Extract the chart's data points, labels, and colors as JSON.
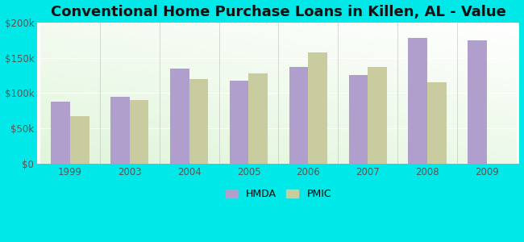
{
  "title": "Conventional Home Purchase Loans in Killen, AL - Value",
  "categories": [
    "1999",
    "2003",
    "2004",
    "2005",
    "2006",
    "2007",
    "2008",
    "2009"
  ],
  "hmda_values": [
    88000,
    95000,
    135000,
    118000,
    137000,
    126000,
    178000,
    175000
  ],
  "pmic_values": [
    67000,
    90000,
    120000,
    128000,
    157000,
    137000,
    115000,
    null
  ],
  "hmda_color": "#b09fcc",
  "pmic_color": "#c8cc9f",
  "outer_background": "#00e8e8",
  "ylim": [
    0,
    200000
  ],
  "yticks": [
    0,
    50000,
    100000,
    150000,
    200000
  ],
  "ytick_labels": [
    "$0",
    "$50k",
    "$100k",
    "$150k",
    "$200k"
  ],
  "bar_width": 0.32,
  "title_fontsize": 13,
  "legend_labels": [
    "HMDA",
    "PMIC"
  ]
}
